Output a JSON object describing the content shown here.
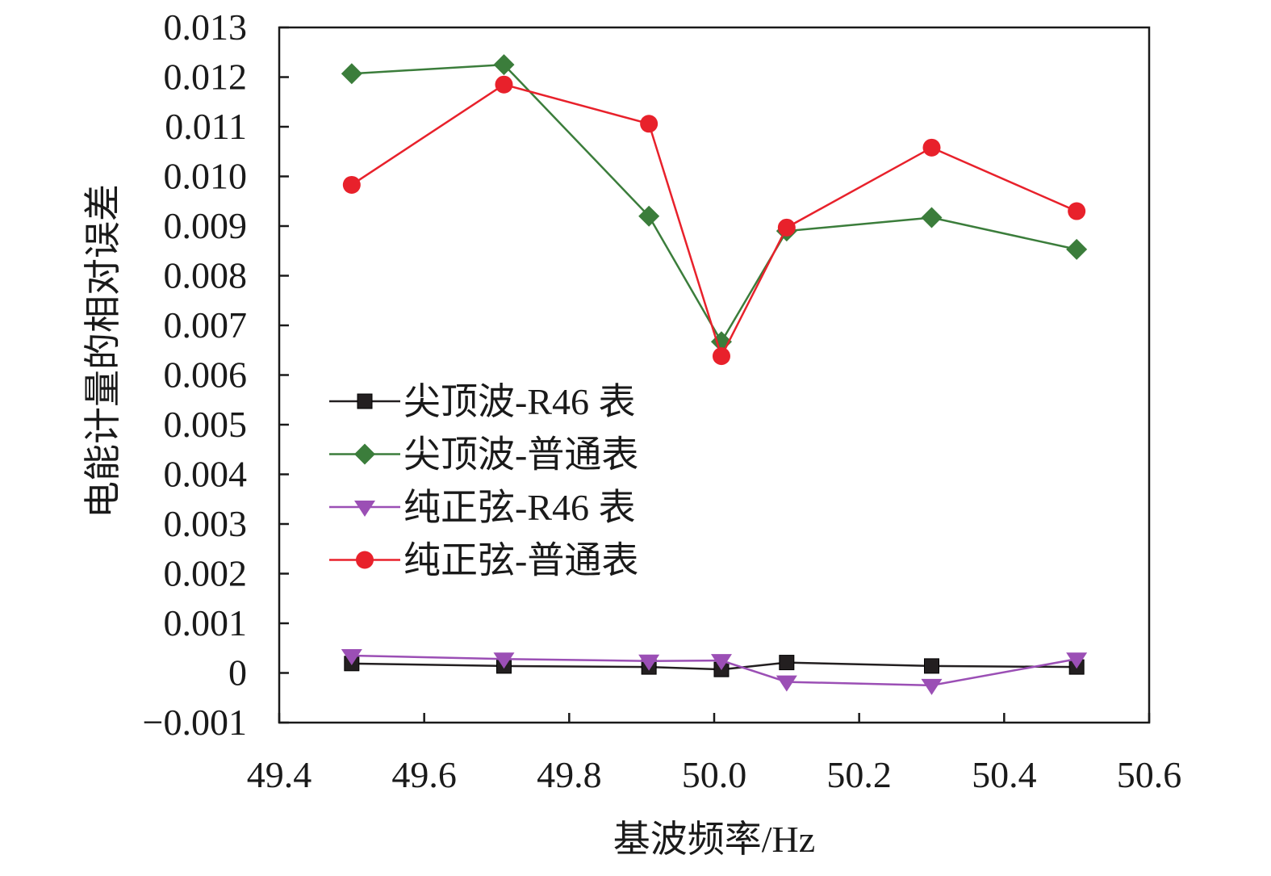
{
  "chart_data": {
    "type": "line",
    "xlabel": "基波频率/Hz",
    "ylabel": "电能计量的相对误差",
    "xlim": [
      49.4,
      50.6
    ],
    "ylim": [
      -0.001,
      0.013
    ],
    "x_ticks": [
      "49.4",
      "49.6",
      "49.8",
      "50.0",
      "50.2",
      "50.4",
      "50.6"
    ],
    "y_ticks": [
      "0.013",
      "0.012",
      "0.011",
      "0.010",
      "0.009",
      "0.008",
      "0.007",
      "0.006",
      "0.005",
      "0.004",
      "0.003",
      "0.002",
      "0.001",
      "0",
      "−0.001"
    ],
    "grid": false,
    "legend_position": "center-left",
    "series": [
      {
        "name": "尖顶波-R46 表",
        "color": "#231f20",
        "marker": "square",
        "x": [
          49.5,
          49.71,
          49.91,
          50.01,
          50.1,
          50.3,
          50.5
        ],
        "y": [
          0.00019,
          0.00014,
          0.00012,
          7e-05,
          0.00021,
          0.00014,
          0.00012
        ]
      },
      {
        "name": "尖顶波-普通表",
        "color": "#3b7d3b",
        "marker": "diamond",
        "x": [
          49.5,
          49.71,
          49.91,
          50.01,
          50.1,
          50.3,
          50.5
        ],
        "y": [
          0.01207,
          0.01225,
          0.0092,
          0.00667,
          0.0089,
          0.00917,
          0.00853
        ]
      },
      {
        "name": "纯正弦-R46 表",
        "color": "#9b4fb5",
        "marker": "triangle-down",
        "x": [
          49.5,
          49.71,
          49.91,
          50.01,
          50.1,
          50.3,
          50.5
        ],
        "y": [
          0.00035,
          0.00028,
          0.00024,
          0.00025,
          -0.00018,
          -0.00025,
          0.00028
        ]
      },
      {
        "name": "纯正弦-普通表",
        "color": "#e8212b",
        "marker": "circle",
        "x": [
          49.5,
          49.71,
          49.91,
          50.01,
          50.1,
          50.3,
          50.5
        ],
        "y": [
          0.00983,
          0.01185,
          0.01106,
          0.00638,
          0.00897,
          0.01058,
          0.0093
        ]
      }
    ]
  }
}
